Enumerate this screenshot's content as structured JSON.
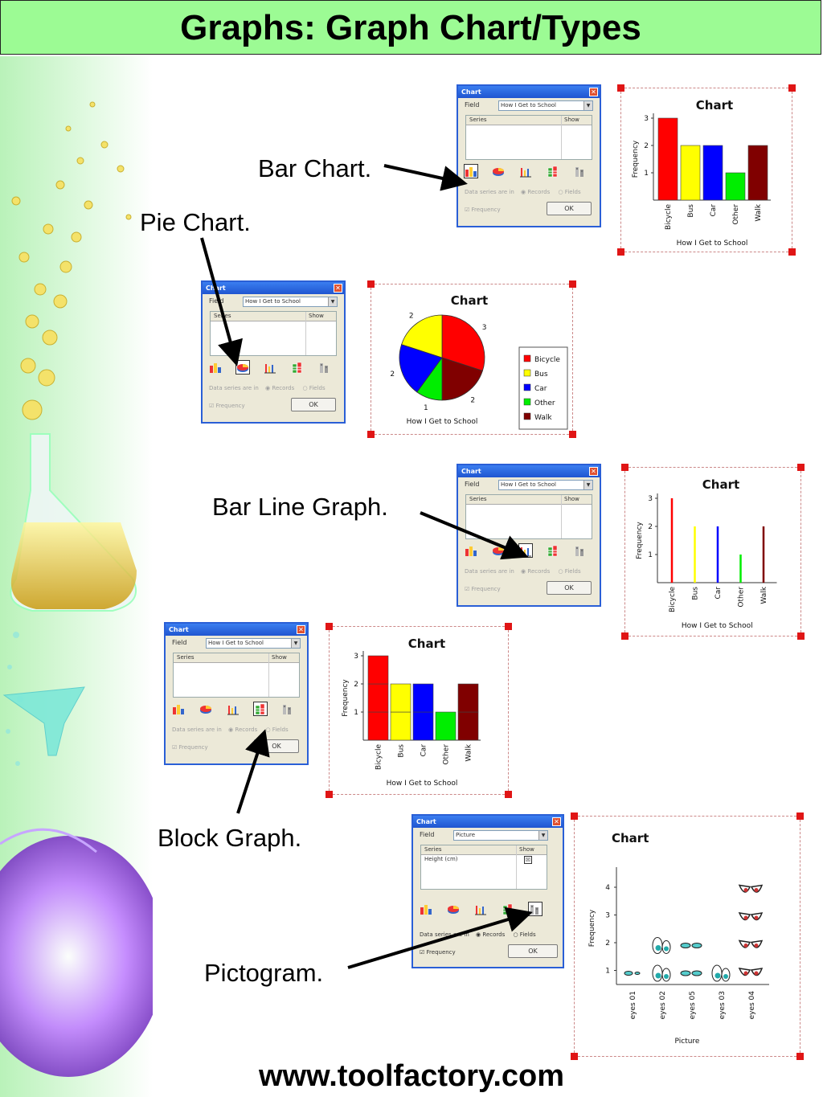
{
  "page": {
    "title": "Graphs: Graph Chart/Types",
    "footer": "www.toolfactory.com",
    "callouts": {
      "bar_chart": "Bar Chart.",
      "pie_chart": "Pie Chart.",
      "bar_line_graph": "Bar Line Graph.",
      "block_graph": "Block Graph.",
      "pictogram": "Pictogram."
    }
  },
  "dialog_common": {
    "title": "Chart",
    "close": "✕",
    "field_label": "Field",
    "series_header": "Series",
    "show_header": "Show",
    "data_series_label": "Data series are in",
    "records": "Records",
    "fields": "Fields",
    "frequency": "Frequency",
    "ok": "OK",
    "chart_type_icons": [
      "bar-chart-icon",
      "pie-chart-icon",
      "bar-line-chart-icon",
      "block-graph-icon",
      "pictogram-icon"
    ]
  },
  "dialogs": {
    "bar": {
      "field_value": "How I Get to School",
      "selected_icon": 0
    },
    "pie": {
      "field_value": "How I Get to School",
      "selected_icon": 1
    },
    "barline": {
      "field_value": "How I Get to School",
      "selected_icon": 2
    },
    "block": {
      "field_value": "How I Get to School",
      "selected_icon": 3
    },
    "picto": {
      "field_value": "Picture",
      "selected_icon": 4,
      "series_row": "Height (cm)",
      "series_row_checked": "☒"
    }
  },
  "colors": {
    "Bicycle": "#ff0000",
    "Bus": "#ffff00",
    "Car": "#0000ff",
    "Other": "#00ee00",
    "Walk": "#800000",
    "title_bar": "#9cfb94",
    "handle": "#e01515"
  },
  "chart_data": [
    {
      "type": "bar",
      "title": "Chart",
      "categories": [
        "Bicycle",
        "Bus",
        "Car",
        "Other",
        "Walk"
      ],
      "values": [
        3,
        2,
        2,
        1,
        2
      ],
      "xlabel": "How I Get to School",
      "ylabel": "Frequency",
      "yticks": [
        "1",
        "2",
        "3"
      ],
      "ylim": [
        0,
        3
      ]
    },
    {
      "type": "pie",
      "title": "Chart",
      "categories": [
        "Bicycle",
        "Bus",
        "Car",
        "Other",
        "Walk"
      ],
      "values": [
        3,
        2,
        2,
        1,
        2
      ],
      "slice_labels": [
        "3",
        "2",
        "2",
        "1",
        "2"
      ],
      "xlabel": "How I Get to School",
      "legend": "right"
    },
    {
      "type": "bar-line",
      "title": "Chart",
      "categories": [
        "Bicycle",
        "Bus",
        "Car",
        "Other",
        "Walk"
      ],
      "values": [
        3,
        2,
        2,
        1,
        2
      ],
      "xlabel": "How I Get to School",
      "ylabel": "Frequency",
      "yticks": [
        "1",
        "2",
        "3"
      ],
      "ylim": [
        0,
        3
      ]
    },
    {
      "type": "block",
      "title": "Chart",
      "categories": [
        "Bicycle",
        "Bus",
        "Car",
        "Other",
        "Walk"
      ],
      "values": [
        3,
        2,
        2,
        1,
        2
      ],
      "xlabel": "How I Get to School",
      "ylabel": "Frequency",
      "yticks": [
        "1",
        "2",
        "3"
      ],
      "ylim": [
        0,
        3
      ]
    },
    {
      "type": "pictogram",
      "title": "Chart",
      "categories": [
        "eyes 01",
        "eyes 02",
        "eyes 05",
        "eyes 03",
        "eyes 04"
      ],
      "values": [
        1,
        2,
        2,
        1,
        4
      ],
      "xlabel": "Picture",
      "ylabel": "Frequency",
      "yticks": [
        "1",
        "2",
        "3",
        "4"
      ],
      "ylim": [
        0,
        4
      ]
    }
  ]
}
